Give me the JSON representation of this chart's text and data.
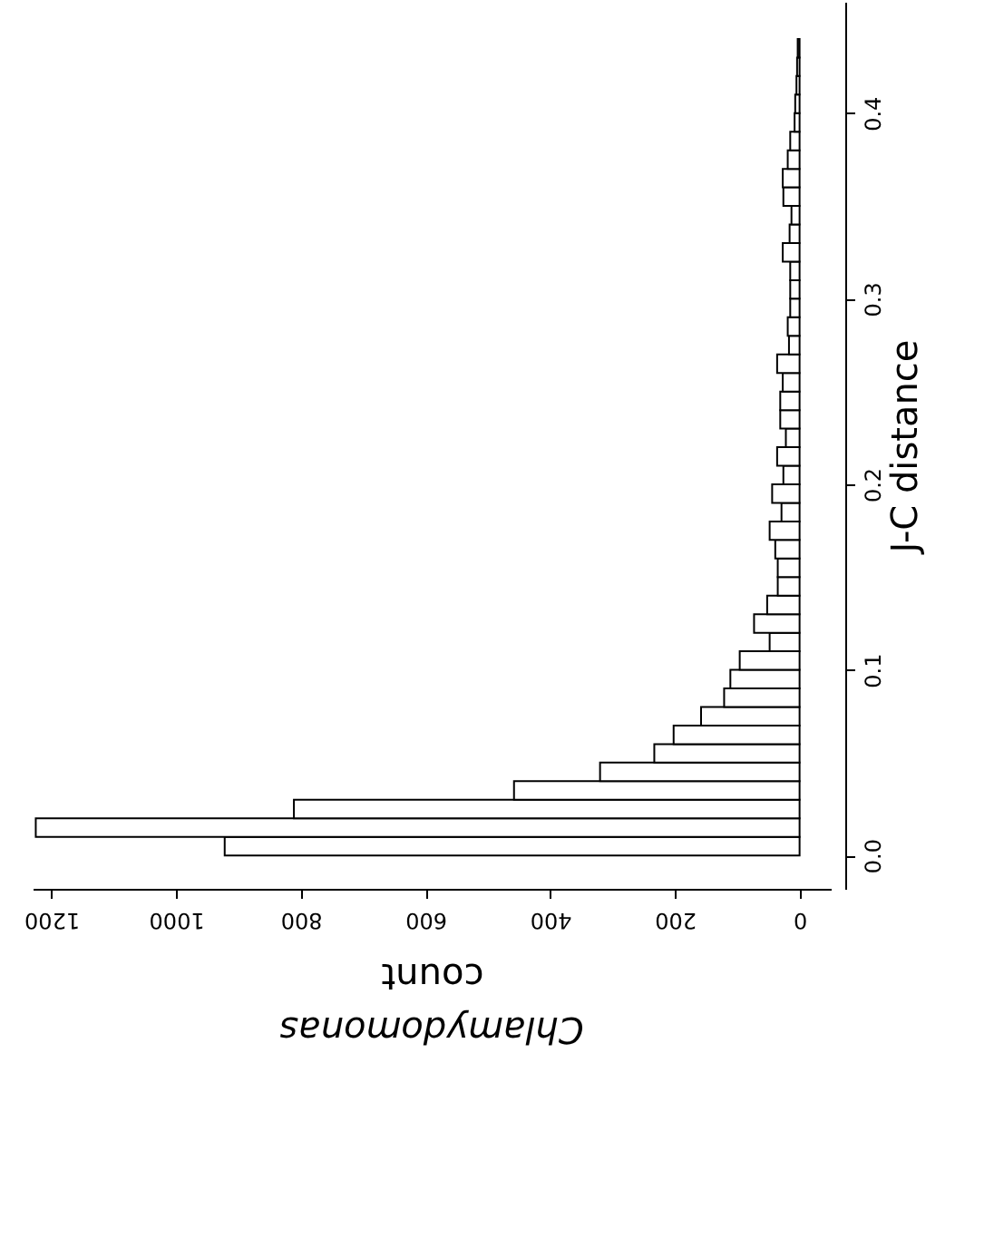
{
  "chart_data": {
    "type": "histogram",
    "orientation": "horizontal",
    "title": "Chlamydomonas",
    "xlabel": "count",
    "ylabel": "J-C distance",
    "bins": [
      0,
      0.01,
      0.02,
      0.03,
      0.04,
      0.05,
      0.06,
      0.07,
      0.08,
      0.09,
      0.1,
      0.11,
      0.12,
      0.13,
      0.14,
      0.15,
      0.16,
      0.17,
      0.18,
      0.19,
      0.2,
      0.21,
      0.22,
      0.23,
      0.24,
      0.25,
      0.26,
      0.27,
      0.28,
      0.29,
      0.3,
      0.31,
      0.32,
      0.33,
      0.34,
      0.35,
      0.36,
      0.37,
      0.38,
      0.39,
      0.4,
      0.41,
      0.42,
      0.43,
      0.44,
      0.45,
      0.46
    ],
    "values": [
      922,
      1225,
      811,
      458,
      320,
      233,
      202,
      158,
      121,
      111,
      96,
      48,
      73,
      52,
      35,
      35,
      39,
      48,
      29,
      44,
      26,
      36,
      22,
      31,
      31,
      27,
      36,
      17,
      19,
      15,
      15,
      15,
      27,
      16,
      13,
      26,
      27,
      19,
      15,
      8,
      7,
      5,
      4,
      3,
      null,
      null
    ],
    "color": "#ffffff",
    "xlim": [
      1230,
      -50
    ],
    "xticks": [
      0,
      200,
      400,
      600,
      800,
      1000,
      1200
    ],
    "ylim": [
      -0.018,
      0.46
    ],
    "yticks": [
      {
        "value": 0,
        "label": "0.0"
      },
      {
        "value": 0.1,
        "label": "0.1"
      },
      {
        "value": 0.2,
        "label": "0.2"
      },
      {
        "value": 0.3,
        "label": "0.3"
      },
      {
        "value": 0.4,
        "label": "0.4"
      }
    ],
    "grid": false
  }
}
